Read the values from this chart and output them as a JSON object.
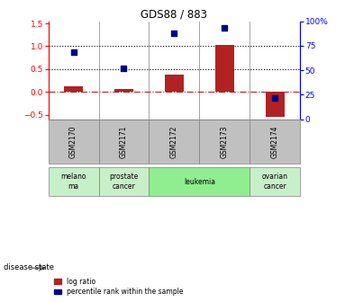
{
  "title": "GDS88 / 883",
  "samples": [
    "GSM2170",
    "GSM2171",
    "GSM2172",
    "GSM2173",
    "GSM2174"
  ],
  "log_ratio": [
    0.13,
    0.07,
    0.37,
    1.02,
    -0.55
  ],
  "percentile_rank_pct": [
    68,
    52,
    88,
    93,
    22
  ],
  "ylim_left": [
    -0.6,
    1.55
  ],
  "ylim_right": [
    0,
    100
  ],
  "yticks_left": [
    -0.5,
    0.0,
    0.5,
    1.0,
    1.5
  ],
  "yticks_right": [
    0,
    25,
    50,
    75,
    100
  ],
  "right_ytick_labels": [
    "0",
    "25",
    "50",
    "75",
    "100%"
  ],
  "hlines": [
    0.5,
    1.0
  ],
  "bar_color": "#b22222",
  "dot_color": "#00008b",
  "zero_line_color": "#b22222",
  "disease_groups": [
    {
      "label": "melano\nma",
      "samples_idx": [
        0
      ],
      "color": "#c8f0c8"
    },
    {
      "label": "prostate\ncancer",
      "samples_idx": [
        1
      ],
      "color": "#c8f0c8"
    },
    {
      "label": "leukemia",
      "samples_idx": [
        2,
        3
      ],
      "color": "#90ee90"
    },
    {
      "label": "ovarian\ncancer",
      "samples_idx": [
        4
      ],
      "color": "#c8f0c8"
    }
  ],
  "legend_bar_label": "log ratio",
  "legend_dot_label": "percentile rank within the sample",
  "disease_state_label": "disease state",
  "background_color": "#ffffff",
  "sample_row_color": "#c0c0c0"
}
